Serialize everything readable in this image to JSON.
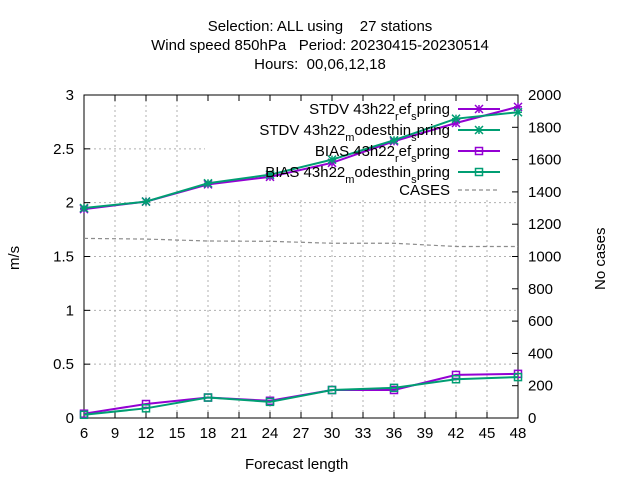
{
  "title_lines": [
    "Selection: ALL using    27 stations",
    "Wind speed 850hPa   Period: 20230415-20230514",
    "Hours:  00,06,12,18"
  ],
  "xlabel": "Forecast length",
  "ylabel": "m/s",
  "y2label": "No cases",
  "legend": [
    {
      "pre": "STDV 43h22",
      "sub1": "r",
      "mid": "ef",
      "sub2": "s",
      "post": "pring"
    },
    {
      "pre": "STDV 43h22",
      "sub1": "m",
      "mid": "odesthin",
      "sub2": "s",
      "post": "pring"
    },
    {
      "pre": "BIAS 43h22",
      "sub1": "r",
      "mid": "ef",
      "sub2": "s",
      "post": "pring"
    },
    {
      "pre": "BIAS 43h22",
      "sub1": "m",
      "mid": "odesthin",
      "sub2": "s",
      "post": "pring"
    },
    {
      "pre": "CASES",
      "sub1": "",
      "mid": "",
      "sub2": "",
      "post": ""
    }
  ],
  "chart_data": {
    "type": "line",
    "x": [
      6,
      12,
      18,
      24,
      30,
      36,
      42,
      48
    ],
    "xlim": [
      6,
      48
    ],
    "xticks": [
      6,
      9,
      12,
      15,
      18,
      21,
      24,
      27,
      30,
      33,
      36,
      39,
      42,
      45,
      48
    ],
    "ylim": [
      0,
      3
    ],
    "yticks": [
      "0",
      "0.5",
      "1",
      "1.5",
      "2",
      "2.5",
      "3"
    ],
    "y2lim": [
      0,
      2000
    ],
    "y2ticks": [
      0,
      200,
      400,
      600,
      800,
      1000,
      1200,
      1400,
      1600,
      1800,
      2000
    ],
    "grid": true,
    "legend_position": "top-right",
    "series": [
      {
        "name": "STDV 43h22_ref_spring",
        "axis": "y",
        "color": "#9400d3",
        "marker": "star",
        "values": [
          1.94,
          2.01,
          2.17,
          2.24,
          2.37,
          2.57,
          2.74,
          2.89
        ]
      },
      {
        "name": "STDV 43h22_modesthin_spring",
        "axis": "y",
        "color": "#009e73",
        "marker": "star",
        "values": [
          1.95,
          2.01,
          2.18,
          2.26,
          2.4,
          2.58,
          2.78,
          2.84
        ]
      },
      {
        "name": "BIAS 43h22_ref_spring",
        "axis": "y",
        "color": "#9400d3",
        "marker": "square",
        "values": [
          0.04,
          0.13,
          0.19,
          0.16,
          0.26,
          0.26,
          0.4,
          0.41
        ]
      },
      {
        "name": "BIAS 43h22_modesthin_spring",
        "axis": "y",
        "color": "#009e73",
        "marker": "square",
        "values": [
          0.03,
          0.09,
          0.19,
          0.15,
          0.26,
          0.28,
          0.36,
          0.38
        ]
      },
      {
        "name": "CASES",
        "axis": "y2",
        "color": "#8c8c8c",
        "marker": "none",
        "dashed": true,
        "values": [
          1112,
          1108,
          1096,
          1094,
          1082,
          1082,
          1062,
          1062
        ]
      }
    ]
  }
}
